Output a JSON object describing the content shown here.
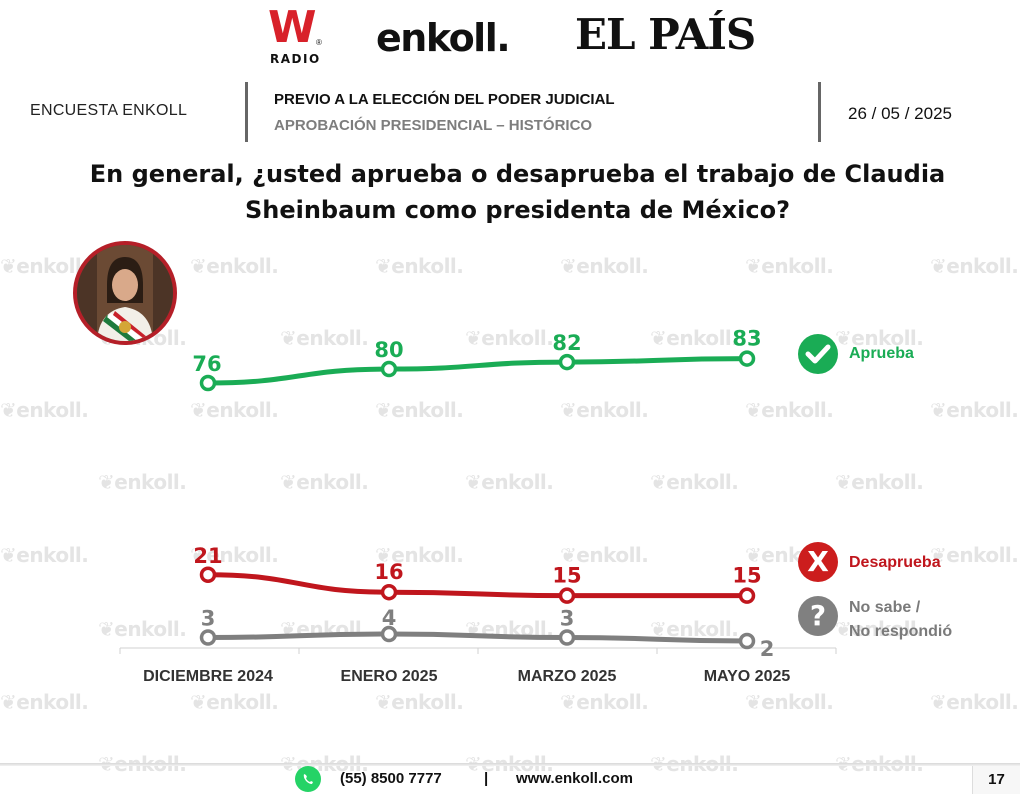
{
  "logos": {
    "w_radio": {
      "letter": "W",
      "sub": "RADIO",
      "mark": "®"
    },
    "enkoll": "enkoll.",
    "el_pais": "EL PAÍS"
  },
  "watermark": "enkoll.",
  "header": {
    "survey_label": "ENCUESTA ENKOLL",
    "title": "PREVIO A LA ELECCIÓN DEL PODER JUDICIAL",
    "subtitle": "APROBACIÓN PRESIDENCIAL – HISTÓRICO",
    "date": "26 / 05 / 2025"
  },
  "question": {
    "line1": "En general, ¿usted aprueba o desaprueba el trabajo de Claudia",
    "line2": "Sheinbaum como presidenta de México?"
  },
  "chart_data": {
    "type": "line",
    "categories": [
      "DICIEMBRE 2024",
      "ENERO 2025",
      "MARZO 2025",
      "MAYO 2025"
    ],
    "series": [
      {
        "name": "Aprueba",
        "values": [
          76,
          80,
          82,
          83
        ],
        "color": "#1aac55"
      },
      {
        "name": "Desaprueba",
        "values": [
          21,
          16,
          15,
          15
        ],
        "color": "#c0161d"
      },
      {
        "name": "No sabe / No respondió",
        "values": [
          3,
          4,
          3,
          2
        ],
        "color": "#7f7f7f"
      }
    ],
    "legend_placement": "right",
    "grid": false,
    "legend_icons": [
      "check-circle-icon",
      "x-circle-icon",
      "question-circle-icon"
    ]
  },
  "legend": {
    "approve": "Aprueba",
    "disapprove": "Desaprueba",
    "disapprove_mark": "X",
    "unknown_line1": "No sabe /",
    "unknown_line2": "No respondió",
    "unknown_mark": "?"
  },
  "footer": {
    "phone": "(55) 8500 7777",
    "separator": "|",
    "website": "www.enkoll.com",
    "page": "17"
  }
}
